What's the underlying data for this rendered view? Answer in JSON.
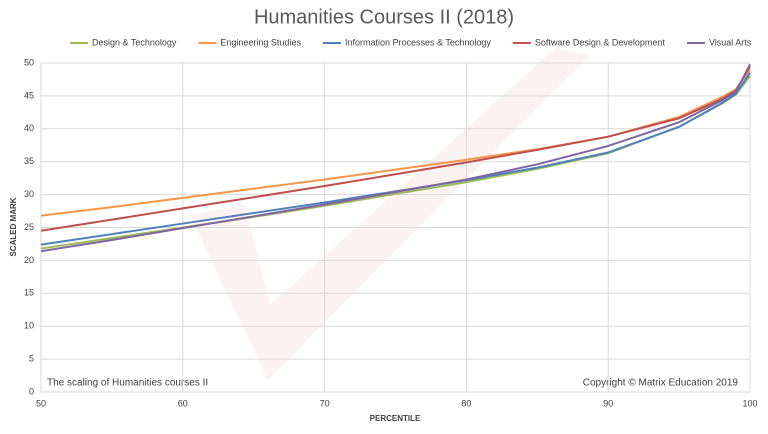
{
  "chart_data": {
    "type": "line",
    "title": "Humanities Courses II (2018)",
    "x_label": "PERCENTILE",
    "y_label": "SCALED MARK",
    "annotations": [
      "The scaling of Humanities courses II",
      "Copyright © Matrix Education 2019"
    ],
    "x": [
      50,
      55,
      60,
      65,
      70,
      75,
      80,
      85,
      90,
      95,
      98,
      99,
      100
    ],
    "series": [
      {
        "name": "Design & Technology",
        "color": "#9bbb59",
        "values": [
          21.8,
          23.4,
          25.0,
          26.6,
          28.3,
          30.1,
          31.9,
          33.9,
          36.3,
          40.3,
          43.8,
          45.2,
          48
        ]
      },
      {
        "name": "Engineering Studies",
        "color": "#f79646",
        "values": [
          26.8,
          28.1,
          29.5,
          30.9,
          32.3,
          33.8,
          35.3,
          36.9,
          38.8,
          41.8,
          44.8,
          46.0,
          49
        ]
      },
      {
        "name": "Information Processes & Technology",
        "color": "#4f81bd",
        "values": [
          22.4,
          24.0,
          25.6,
          27.2,
          28.8,
          30.5,
          32.2,
          34.1,
          36.4,
          40.3,
          43.9,
          45.3,
          48.5
        ]
      },
      {
        "name": "Software Design & Development",
        "color": "#c0504d",
        "values": [
          24.5,
          26.2,
          27.9,
          29.6,
          31.3,
          33.1,
          34.9,
          36.8,
          38.8,
          41.6,
          44.5,
          45.8,
          49.5
        ]
      },
      {
        "name": "Visual Arts",
        "color": "#8064a2",
        "values": [
          21.4,
          23.1,
          24.9,
          26.7,
          28.5,
          30.4,
          32.3,
          34.6,
          37.4,
          41.0,
          44.3,
          45.6,
          49.8
        ]
      }
    ],
    "xlim": [
      50,
      100
    ],
    "xticks": [
      50,
      60,
      70,
      80,
      90,
      100
    ],
    "ylim": [
      0,
      50
    ],
    "yticks": [
      0,
      5,
      10,
      15,
      20,
      25,
      30,
      35,
      40,
      45,
      50
    ],
    "grid": true,
    "legend": "top"
  }
}
